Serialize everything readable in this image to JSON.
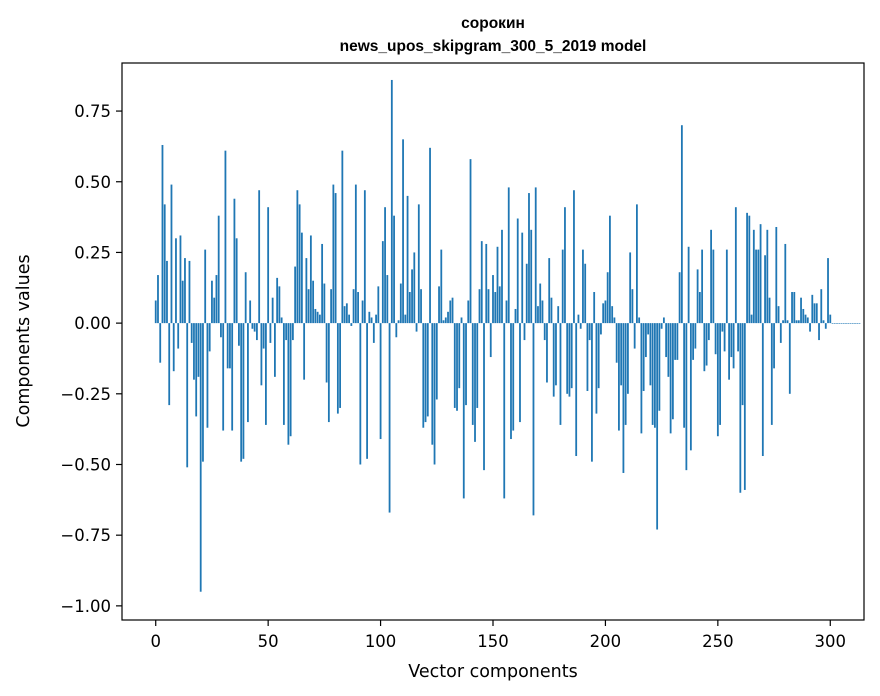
{
  "chart_data": {
    "type": "bar",
    "title": "сорокин",
    "subtitle": "news_upos_skipgram_300_5_2019 model",
    "xlabel": "Vector components",
    "ylabel": "Components values",
    "xlim": [
      -15,
      315
    ],
    "ylim": [
      -1.05,
      0.92
    ],
    "xticks": [
      0,
      50,
      100,
      150,
      200,
      250,
      300
    ],
    "yticks": [
      -1.0,
      -0.75,
      -0.5,
      -0.25,
      0.0,
      0.25,
      0.5,
      0.75
    ],
    "ytick_labels": [
      "−1.00",
      "−0.75",
      "−0.50",
      "−0.25",
      "0.00",
      "0.25",
      "0.50",
      "0.75"
    ],
    "xtick_labels": [
      "0",
      "50",
      "100",
      "150",
      "200",
      "250",
      "300"
    ],
    "grid": false,
    "legend": "none",
    "bar_color": "#1f77b4",
    "values": [
      0.08,
      0.17,
      -0.14,
      0.63,
      0.42,
      0.22,
      -0.29,
      0.49,
      -0.17,
      0.3,
      -0.09,
      0.31,
      0.15,
      0.23,
      -0.51,
      0.22,
      -0.07,
      -0.2,
      -0.33,
      -0.19,
      -0.95,
      -0.49,
      0.26,
      -0.37,
      -0.1,
      0.15,
      0.09,
      0.17,
      0.38,
      -0.05,
      -0.38,
      0.61,
      -0.16,
      -0.16,
      -0.38,
      0.44,
      0.3,
      -0.08,
      -0.49,
      -0.48,
      0.18,
      -0.35,
      0.08,
      -0.02,
      -0.03,
      -0.06,
      0.47,
      -0.22,
      -0.09,
      -0.36,
      0.41,
      -0.07,
      0.09,
      -0.19,
      0.16,
      0.13,
      0.02,
      -0.36,
      -0.06,
      -0.43,
      -0.4,
      -0.06,
      0.2,
      0.47,
      0.42,
      0.32,
      -0.2,
      0.23,
      0.12,
      0.31,
      0.15,
      0.05,
      0.04,
      0.03,
      0.28,
      0.14,
      -0.21,
      -0.35,
      0.12,
      0.49,
      0.46,
      -0.32,
      -0.3,
      0.61,
      0.06,
      0.07,
      0.03,
      -0.01,
      0.12,
      0.49,
      0.11,
      -0.5,
      0.08,
      0.47,
      -0.48,
      0.04,
      0.02,
      -0.07,
      0.03,
      0.13,
      -0.41,
      0.29,
      0.41,
      0.17,
      -0.67,
      0.86,
      0.38,
      -0.05,
      0.01,
      0.14,
      0.65,
      0.03,
      0.45,
      0.11,
      0.19,
      0.25,
      -0.03,
      0.42,
      0.12,
      -0.37,
      -0.35,
      -0.33,
      0.62,
      -0.43,
      -0.5,
      -0.27,
      0.13,
      0.26,
      0.01,
      0.02,
      0.04,
      0.08,
      0.09,
      -0.3,
      -0.31,
      -0.23,
      0.02,
      -0.62,
      -0.29,
      0.08,
      0.58,
      -0.36,
      -0.42,
      -0.3,
      0.12,
      0.29,
      -0.52,
      0.28,
      0.12,
      -0.12,
      0.17,
      0.11,
      0.27,
      0.13,
      0.33,
      -0.62,
      0.08,
      0.48,
      -0.41,
      -0.38,
      0.05,
      0.37,
      -0.35,
      0.32,
      -0.06,
      0.21,
      0.46,
      0.33,
      -0.68,
      0.48,
      0.06,
      0.14,
      0.08,
      -0.06,
      -0.21,
      0.23,
      0.09,
      -0.26,
      -0.22,
      0.06,
      -0.36,
      0.26,
      0.41,
      -0.25,
      -0.26,
      -0.23,
      0.47,
      -0.47,
      0.03,
      -0.02,
      0.26,
      0.21,
      -0.24,
      -0.06,
      -0.49,
      0.11,
      -0.32,
      -0.23,
      -0.04,
      0.07,
      0.08,
      0.18,
      0.38,
      0.06,
      0.02,
      -0.14,
      -0.38,
      -0.22,
      -0.53,
      -0.36,
      -0.25,
      0.25,
      0.12,
      -0.09,
      0.42,
      0.02,
      -0.39,
      -0.24,
      -0.12,
      -0.04,
      -0.22,
      -0.36,
      -0.37,
      -0.73,
      -0.31,
      -0.02,
      0.02,
      -0.12,
      -0.19,
      -0.39,
      -0.34,
      -0.13,
      -0.13,
      0.18,
      0.7,
      -0.37,
      -0.52,
      0.27,
      -0.45,
      -0.13,
      -0.09,
      0.19,
      0.11,
      0.26,
      -0.17,
      -0.15,
      -0.06,
      0.33,
      0.26,
      -0.11,
      -0.4,
      -0.36,
      -0.03,
      -0.1,
      0.26,
      -0.2,
      -0.12,
      -0.16,
      0.41,
      -0.1,
      -0.6,
      -0.29,
      -0.59,
      0.39,
      0.38,
      0.03,
      0.33,
      0.26,
      0.26,
      0.35,
      -0.47,
      0.24,
      0.33,
      0.09,
      -0.36,
      -0.16,
      0.34,
      0.06,
      -0.07,
      0.01,
      0.28,
      0.01,
      -0.25,
      0.11,
      0.11,
      0.01,
      0.01,
      0.09,
      0.05,
      0.03,
      0.02,
      -0.03,
      0.1,
      0.07,
      0.07,
      -0.06,
      0.12,
      0.01,
      -0.02,
      0.23,
      0.03,
      0.0,
      0.0,
      0.0,
      0.0,
      0.0,
      0.0,
      0.0,
      0.0,
      0.0,
      0.0,
      0.0,
      0.0,
      0.0
    ]
  }
}
